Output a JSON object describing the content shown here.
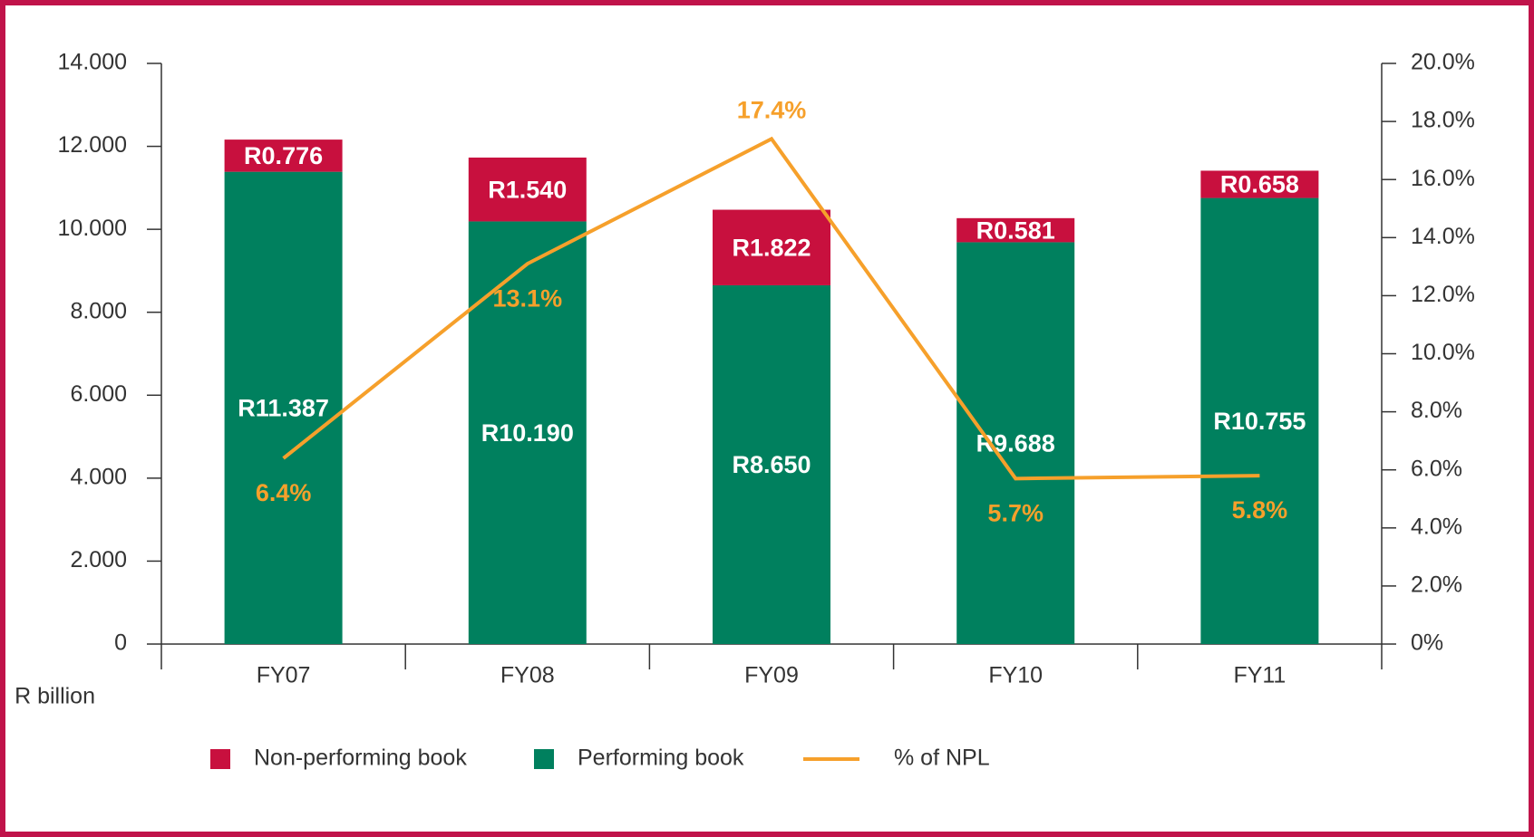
{
  "chart_data": {
    "type": "bar",
    "categories": [
      "FY07",
      "FY08",
      "FY09",
      "FY10",
      "FY11"
    ],
    "series": [
      {
        "name": "Non-performing book",
        "color": "#c8103e",
        "values": [
          0.776,
          1.54,
          1.822,
          0.581,
          0.658
        ],
        "value_labels": [
          "R0.776",
          "R1.540",
          "R1.822",
          "R0.581",
          "R0.658"
        ]
      },
      {
        "name": "Performing book",
        "color": "#00805e",
        "values": [
          11.387,
          10.19,
          8.65,
          9.688,
          10.755
        ],
        "value_labels": [
          "R11.387",
          "R10.190",
          "R8.650",
          "R9.688",
          "R10.755"
        ]
      },
      {
        "name": "% of NPL",
        "type": "line",
        "axis": "y2",
        "color": "#f6a02b",
        "values": [
          6.4,
          13.1,
          17.4,
          5.7,
          5.8
        ],
        "value_labels": [
          "6.4%",
          "13.1%",
          "17.4%",
          "5.7%",
          "5.8%"
        ]
      }
    ],
    "ylabel": "R billion",
    "ylim": [
      0,
      14
    ],
    "yticks": [
      0,
      {
        "value": 2,
        "label": "2.000"
      },
      {
        "value": 4,
        "label": "4.000"
      },
      {
        "value": 6,
        "label": "6.000"
      },
      {
        "value": 8,
        "label": "8.000"
      },
      {
        "value": 10,
        "label": "10.000"
      },
      {
        "value": 12,
        "label": "12.000"
      },
      {
        "value": 14,
        "label": "14.000"
      }
    ],
    "y2lim": [
      0,
      20
    ],
    "y2ticks": [
      {
        "value": 0,
        "label": "0%"
      },
      {
        "value": 2,
        "label": "2.0%"
      },
      {
        "value": 4,
        "label": "4.0%"
      },
      {
        "value": 6,
        "label": "6.0%"
      },
      {
        "value": 8,
        "label": "8.0%"
      },
      {
        "value": 10,
        "label": "10.0%"
      },
      {
        "value": 12,
        "label": "12.0%"
      },
      {
        "value": 14,
        "label": "14.0%"
      },
      {
        "value": 16,
        "label": "16.0%"
      },
      {
        "value": 18,
        "label": "18.0%"
      },
      {
        "value": 20,
        "label": "20.0%"
      }
    ],
    "legend": "bottom"
  }
}
